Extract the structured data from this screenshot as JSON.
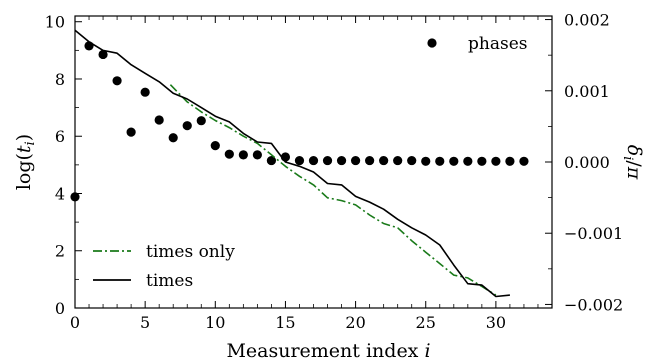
{
  "chart_data": {
    "type": "line",
    "xlabel": "Measurement index ",
    "xlabel_var": "i",
    "ylabel_left": "log(t_i)",
    "ylabel_right": "δ_i/π",
    "xlim": [
      0,
      34
    ],
    "ylim_left": [
      0,
      10.2
    ],
    "ylim_right": [
      -0.00205,
      0.00205
    ],
    "x_ticks": [
      0,
      5,
      10,
      15,
      20,
      25,
      30
    ],
    "y_left_ticks": [
      0,
      2,
      4,
      6,
      8,
      10
    ],
    "y_right_ticks": [
      {
        "value": 0.002,
        "label": "0.002"
      },
      {
        "value": 0.001,
        "label": "0.001"
      },
      {
        "value": 0.0,
        "label": "0.000"
      },
      {
        "value": -0.001,
        "label": "−0.001"
      },
      {
        "value": -0.002,
        "label": "−0.002"
      }
    ],
    "series": [
      {
        "name": "phases",
        "kind": "scatter",
        "axis": "right",
        "color": "#000000",
        "x": [
          0,
          1,
          2,
          3,
          4,
          5,
          6,
          7,
          8,
          9,
          10,
          11,
          12,
          13,
          14,
          15,
          16,
          17,
          18,
          19,
          20,
          21,
          22,
          23,
          24,
          25,
          26,
          27,
          28,
          29,
          30,
          31,
          32
        ],
        "y": [
          -0.00049,
          0.00163,
          0.00151,
          0.00114,
          0.00042,
          0.00098,
          0.00059,
          0.00034,
          0.00051,
          0.00058,
          0.00023,
          0.00011,
          0.0001,
          0.0001,
          2e-05,
          7e-05,
          2e-05,
          2e-05,
          2e-05,
          2e-05,
          2e-05,
          2e-05,
          2e-05,
          2e-05,
          2e-05,
          1e-05,
          1e-05,
          1e-05,
          1e-05,
          1e-05,
          1e-05,
          1e-05,
          1e-05
        ]
      },
      {
        "name": "times only",
        "kind": "line",
        "style": "dashdot",
        "axis": "left",
        "color": "#1a7a1a",
        "x": [
          6.8,
          8,
          9,
          10,
          11,
          12,
          13,
          14,
          15,
          16,
          17,
          18,
          19,
          20,
          21,
          22,
          23,
          24,
          25,
          26,
          27,
          28,
          29,
          30
        ],
        "y": [
          7.8,
          7.2,
          6.85,
          6.55,
          6.3,
          6.0,
          5.75,
          5.35,
          4.95,
          4.6,
          4.3,
          3.85,
          3.75,
          3.6,
          3.25,
          2.95,
          2.8,
          2.35,
          1.95,
          1.55,
          1.15,
          1.05,
          0.75,
          0.45
        ]
      },
      {
        "name": "times",
        "kind": "line",
        "style": "solid",
        "axis": "left",
        "color": "#000000",
        "x": [
          0,
          1,
          2,
          3,
          4,
          5,
          6,
          7,
          8,
          9,
          10,
          11,
          12,
          13,
          14,
          15,
          16,
          17,
          18,
          19,
          20,
          21,
          22,
          23,
          24,
          25,
          26,
          27,
          28,
          29,
          30,
          31
        ],
        "y": [
          9.7,
          9.3,
          9.0,
          8.9,
          8.5,
          8.2,
          7.9,
          7.5,
          7.3,
          7.0,
          6.7,
          6.5,
          6.1,
          5.8,
          5.75,
          5.1,
          4.95,
          4.75,
          4.35,
          4.3,
          3.9,
          3.7,
          3.45,
          3.1,
          2.8,
          2.55,
          2.2,
          1.5,
          0.85,
          0.8,
          0.4,
          0.45
        ]
      }
    ],
    "legend": [
      {
        "label": "phases",
        "position": "top-right"
      },
      {
        "label": "times only",
        "position": "bottom-left"
      },
      {
        "label": "times",
        "position": "bottom-left"
      }
    ]
  }
}
